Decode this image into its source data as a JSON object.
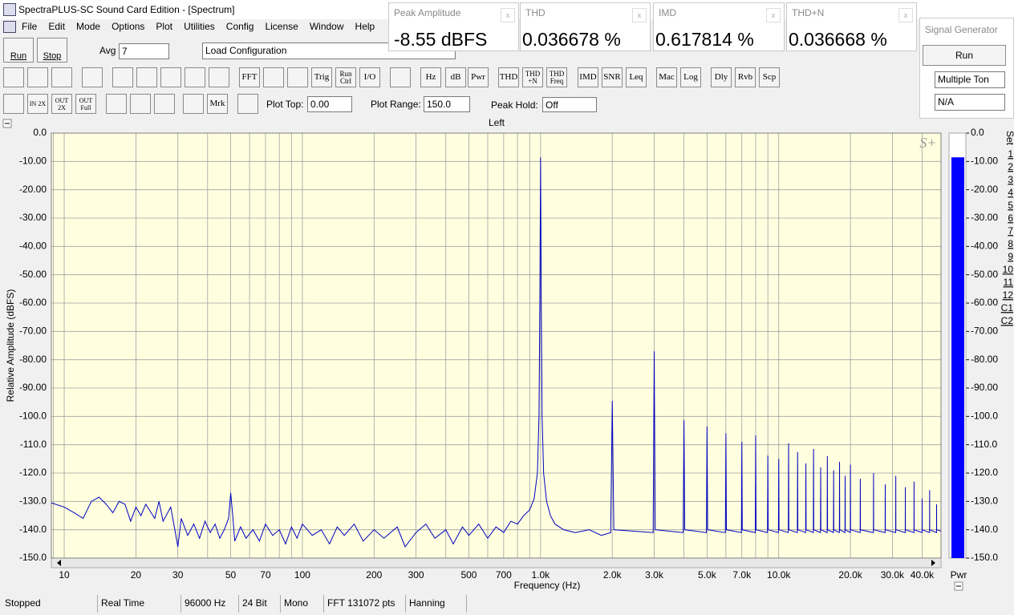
{
  "window": {
    "title": "SpectraPLUS-SC Sound Card Edition - [Spectrum]",
    "menu": [
      "File",
      "Edit",
      "Mode",
      "Options",
      "Plot",
      "Utilities",
      "Config",
      "License",
      "Window",
      "Help"
    ]
  },
  "toolbar": {
    "run": "Run",
    "stop": "Stop",
    "avg_label": "Avg",
    "avg": "7",
    "config": "Load Configuration",
    "buttons": [
      "FFT",
      "Trig",
      "Run Ctrl",
      "I/O",
      "Hz",
      "dB",
      "Pwr",
      "THD",
      "THD +N",
      "THD Freq",
      "IMD",
      "SNR",
      "Leq",
      "Mac",
      "Log",
      "Dly",
      "Rvb",
      "Scp"
    ],
    "zoom_buttons": [
      "IN 2X",
      "OUT 2X",
      "OUT Full"
    ],
    "marker": "Mrk",
    "plot_top_label": "Plot Top:",
    "plot_top": "0.00",
    "plot_range_label": "Plot Range:",
    "plot_range": "150.0",
    "peak_hold_label": "Peak Hold:",
    "peak_hold": "Off"
  },
  "meters": [
    {
      "name": "Peak Amplitude",
      "value": "-8.55 dBFS"
    },
    {
      "name": "THD",
      "value": "0.036678 %"
    },
    {
      "name": "IMD",
      "value": "0.617814 %"
    },
    {
      "name": "THD+N",
      "value": "0.036668 %"
    }
  ],
  "signal_generator": {
    "title": "Signal Generator",
    "run": "Run",
    "mode": "Multiple Ton",
    "channel": "N/A"
  },
  "chart_data": {
    "type": "line",
    "title": "Left",
    "x_label": "Frequency (Hz)",
    "y_label": "Relative Amplitude (dBFS)",
    "logo": "S+",
    "color": "#0000c0",
    "background": "#ffffe0",
    "log_x": true,
    "grid": true,
    "x": [
      8.83,
      10,
      11,
      12,
      13,
      14,
      15,
      16,
      17,
      18,
      19,
      20,
      21,
      22,
      24,
      25,
      26,
      28,
      29,
      30,
      31,
      33,
      35,
      37,
      39,
      41,
      43,
      45,
      47,
      49,
      50,
      51,
      52,
      55,
      58,
      62,
      66,
      70,
      75,
      80,
      85,
      90,
      95,
      100,
      110,
      120,
      130,
      140,
      150,
      165,
      180,
      200,
      220,
      250,
      270,
      300,
      330,
      360,
      400,
      430,
      470,
      500,
      550,
      600,
      650,
      700,
      750,
      800,
      850,
      900,
      940,
      970,
      985,
      993,
      1000,
      1007,
      1015,
      1030,
      1060,
      1100,
      1150,
      1250,
      1400,
      1600,
      1800,
      1970,
      2000,
      2030,
      2970,
      3000,
      3030,
      3970,
      4000,
      4030,
      4970,
      5000,
      5030,
      5970,
      6000,
      6030,
      6970,
      7000,
      7030,
      7970,
      8000,
      8030,
      8970,
      9000,
      9030,
      9970,
      10000,
      10030,
      10970,
      11000,
      11030,
      11970,
      12000,
      12030,
      12970,
      13000,
      13030,
      13970,
      14000,
      14030,
      14970,
      15000,
      15030,
      15970,
      16000,
      16030,
      16970,
      17000,
      17030,
      17970,
      18000,
      18030,
      18970,
      19000,
      19030,
      19970,
      20000,
      20030,
      21970,
      22000,
      22030,
      24970,
      25000,
      25030,
      27970,
      28000,
      28030,
      30970,
      31000,
      31030,
      33970,
      34000,
      34030,
      36970,
      37000,
      37030,
      39970,
      40000,
      40030,
      42970,
      43000,
      43030,
      45970,
      46000,
      46030,
      48000
    ],
    "values": [
      -130.5,
      -132,
      -134,
      -136,
      -130,
      -128.5,
      -131,
      -134,
      -130,
      -131,
      -137,
      -132,
      -135,
      -131,
      -136,
      -130,
      -137,
      -132,
      -139,
      -146,
      -136,
      -142,
      -138,
      -143,
      -137,
      -141,
      -138,
      -143,
      -140,
      -136,
      -127,
      -135,
      -144,
      -139,
      -143,
      -140,
      -144,
      -138,
      -142,
      -140,
      -145,
      -139,
      -143,
      -138,
      -142,
      -140,
      -145,
      -139,
      -142,
      -138,
      -144,
      -140,
      -143,
      -139,
      -146,
      -141,
      -138,
      -143,
      -140,
      -145,
      -139,
      -142,
      -138,
      -143,
      -139,
      -141,
      -137,
      -138,
      -135,
      -133,
      -129,
      -120,
      -100,
      -60,
      -8.55,
      -60,
      -100,
      -120,
      -130,
      -135,
      -138,
      -140,
      -141,
      -140,
      -142,
      -141,
      -94.5,
      -140,
      -141,
      -77,
      -140,
      -141,
      -101.3,
      -140,
      -141,
      -103.6,
      -140,
      -141,
      -106,
      -140,
      -141,
      -109,
      -140,
      -141,
      -106.7,
      -140,
      -141,
      -113.8,
      -140,
      -141,
      -115,
      -140,
      -141,
      -109.5,
      -140,
      -141,
      -112.6,
      -140,
      -141,
      -116.6,
      -140,
      -141,
      -111.5,
      -140,
      -141,
      -118,
      -140,
      -141,
      -114,
      -140,
      -141,
      -119,
      -140,
      -141,
      -116,
      -140,
      -141,
      -121,
      -140,
      -141,
      -117,
      -140,
      -141,
      -122,
      -140,
      -141,
      -120,
      -140,
      -141,
      -124,
      -140,
      -141,
      -121,
      -140,
      -141,
      -125,
      -140,
      -141,
      -123,
      -140,
      -141,
      -129,
      -140,
      -141,
      -126,
      -140,
      -141,
      -131,
      -140,
      -140.5
    ],
    "xlim": [
      8.83,
      48000
    ],
    "ylim": [
      -150,
      0
    ],
    "xticks": [
      10,
      20,
      30,
      50,
      70,
      100,
      200,
      300,
      500,
      700,
      {
        "value": 1000,
        "label": "1.0k"
      },
      {
        "value": 2000,
        "label": "2.0k"
      },
      {
        "value": 3000,
        "label": "3.0k"
      },
      {
        "value": 5000,
        "label": "5.0k"
      },
      {
        "value": 7000,
        "label": "7.0k"
      },
      {
        "value": 10000,
        "label": "10.0k"
      },
      {
        "value": 20000,
        "label": "20.0k"
      },
      {
        "value": 30000,
        "label": "30.0k"
      },
      {
        "value": 40000,
        "label": "40.0k"
      }
    ],
    "xminor_ticks": [
      9,
      40,
      60,
      80,
      90,
      400,
      600,
      800,
      900,
      4000,
      6000,
      8000,
      9000
    ],
    "yticks": [
      {
        "value": 0,
        "label": "0.0"
      },
      {
        "value": -10,
        "label": "-10.00"
      },
      {
        "value": -20,
        "label": "-20.00"
      },
      {
        "value": -30,
        "label": "-30.00"
      },
      {
        "value": -40,
        "label": "-40.00"
      },
      {
        "value": -50,
        "label": "-50.00"
      },
      {
        "value": -60,
        "label": "-60.00"
      },
      {
        "value": -70,
        "label": "-70.00"
      },
      {
        "value": -80,
        "label": "-80.00"
      },
      {
        "value": -90,
        "label": "-90.00"
      },
      {
        "value": -100,
        "label": "-100.0"
      },
      {
        "value": -110,
        "label": "-110.0"
      },
      {
        "value": -120,
        "label": "-120.0"
      },
      {
        "value": -130,
        "label": "-130.0"
      },
      {
        "value": -140,
        "label": "-140.0"
      },
      {
        "value": -150,
        "label": "-150.0"
      }
    ],
    "level_meter": {
      "label": "Pwr",
      "value": -8.55,
      "color": "#0000ff"
    },
    "set_label": "Set",
    "sets": [
      "1",
      "2",
      "3",
      "4",
      "5",
      "6",
      "7",
      "8",
      "9",
      "10",
      "11",
      "12",
      "C1",
      "C2"
    ]
  },
  "status_bar": [
    "Stopped",
    "Real Time",
    "96000 Hz",
    "24 Bit",
    "Mono",
    "FFT 131072 pts",
    "Hanning"
  ]
}
